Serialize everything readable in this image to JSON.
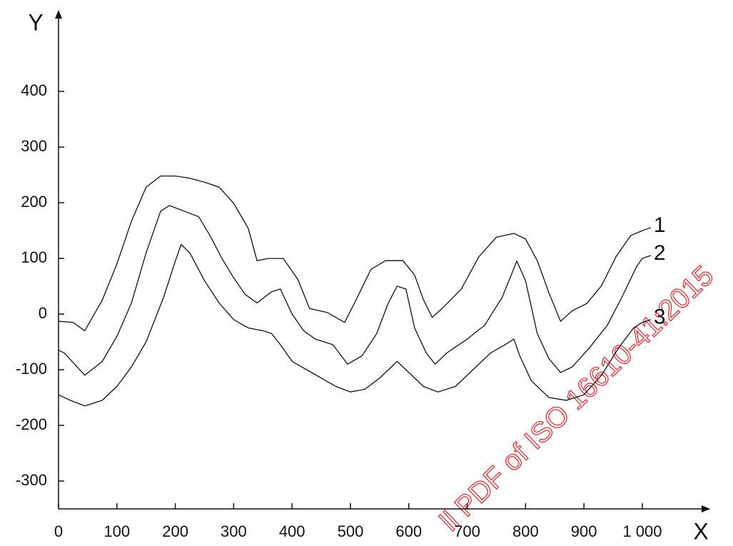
{
  "chart_data": {
    "type": "line",
    "x_label": "X",
    "y_label": "Y",
    "annotation": "ll PDF of ISO 16610-41:2015",
    "xlim": [
      0,
      1115
    ],
    "ylim": [
      -350,
      545
    ],
    "xticks": [
      0,
      100,
      200,
      300,
      400,
      500,
      600,
      700,
      800,
      900,
      {
        "value": 1000,
        "label": "1 000"
      }
    ],
    "yticks": [
      -300,
      -200,
      -100,
      0,
      100,
      200,
      300,
      400
    ],
    "grid": false,
    "series": [
      {
        "name": "1",
        "color": "#111111",
        "x": [
          0,
          25,
          45,
          75,
          100,
          125,
          150,
          175,
          200,
          225,
          250,
          275,
          300,
          325,
          340,
          360,
          385,
          410,
          430,
          460,
          490,
          510,
          535,
          560,
          590,
          610,
          625,
          640,
          660,
          690,
          720,
          750,
          780,
          800,
          820,
          840,
          860,
          880,
          905,
          930,
          955,
          980,
          1000
        ],
        "values": [
          -13,
          -15,
          -30,
          25,
          90,
          167,
          228,
          248,
          248,
          244,
          237,
          228,
          199,
          154,
          96,
          100,
          100,
          62,
          10,
          3,
          -15,
          26,
          80,
          96,
          96,
          70,
          26,
          -6,
          13,
          45,
          103,
          138,
          145,
          135,
          96,
          38,
          -13,
          6,
          19,
          51,
          103,
          141,
          150
        ]
      },
      {
        "name": "2",
        "color": "#111111",
        "x": [
          0,
          10,
          45,
          75,
          100,
          125,
          150,
          175,
          190,
          215,
          240,
          260,
          280,
          300,
          320,
          340,
          365,
          380,
          400,
          420,
          440,
          470,
          495,
          520,
          545,
          565,
          580,
          595,
          610,
          630,
          645,
          665,
          700,
          730,
          760,
          785,
          800,
          820,
          840,
          860,
          880,
          910,
          940,
          965,
          990,
          1000
        ],
        "values": [
          -65,
          -70,
          -110,
          -85,
          -40,
          20,
          110,
          185,
          195,
          185,
          175,
          140,
          100,
          65,
          35,
          20,
          40,
          45,
          0,
          -30,
          -45,
          -55,
          -90,
          -75,
          -35,
          20,
          50,
          45,
          -25,
          -70,
          -90,
          -70,
          -45,
          -20,
          30,
          95,
          60,
          -35,
          -80,
          -105,
          -95,
          -60,
          -20,
          30,
          85,
          100
        ]
      },
      {
        "name": "3",
        "color": "#111111",
        "x": [
          0,
          20,
          45,
          75,
          100,
          125,
          150,
          180,
          200,
          210,
          225,
          250,
          275,
          300,
          325,
          350,
          365,
          380,
          400,
          425,
          450,
          475,
          500,
          525,
          550,
          570,
          580,
          600,
          625,
          650,
          680,
          710,
          740,
          765,
          780,
          790,
          810,
          840,
          870,
          900,
          930,
          960,
          985,
          1000
        ],
        "values": [
          -145,
          -155,
          -165,
          -155,
          -130,
          -95,
          -50,
          30,
          95,
          125,
          110,
          60,
          20,
          -10,
          -25,
          -30,
          -35,
          -55,
          -85,
          -100,
          -115,
          -130,
          -140,
          -135,
          -115,
          -95,
          -85,
          -105,
          -130,
          -140,
          -130,
          -100,
          -70,
          -55,
          -45,
          -75,
          -120,
          -150,
          -155,
          -145,
          -110,
          -60,
          -25,
          -15
        ]
      }
    ]
  }
}
